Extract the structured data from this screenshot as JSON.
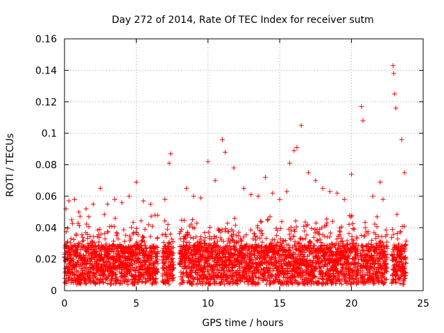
{
  "chart_data": {
    "type": "scatter",
    "title": "Day 272 of 2014, Rate Of TEC Index for receiver sutm",
    "xlabel": "GPS time / hours",
    "ylabel": "ROTI / TECUs",
    "xlim": [
      0,
      25
    ],
    "ylim": [
      0,
      0.16
    ],
    "x_ticks": [
      0,
      5,
      10,
      15,
      20,
      25
    ],
    "x_tick_labels": [
      "0",
      "5",
      "10",
      "15",
      "20",
      "25"
    ],
    "y_ticks": [
      0,
      0.02,
      0.04,
      0.06,
      0.08,
      0.1,
      0.12,
      0.14,
      0.16
    ],
    "y_tick_labels": [
      "0",
      "0.02",
      "0.04",
      "0.06",
      "0.08",
      "0.1",
      "0.12",
      "0.14",
      "0.16"
    ],
    "grid": true,
    "marker": "+",
    "color": "#ff0000",
    "data_gaps_hours": [
      [
        6.5,
        6.8
      ],
      [
        7.6,
        8.0
      ],
      [
        20.5,
        20.6
      ],
      [
        22.5,
        22.8
      ],
      [
        23.8,
        25
      ]
    ],
    "series": [
      {
        "name": "ROTI",
        "x": [
          0.1,
          0.3,
          0.5,
          0.7,
          1.0,
          1.5,
          2.0,
          2.5,
          3.0,
          3.5,
          4.0,
          4.5,
          5.0,
          5.5,
          6.0,
          6.3,
          7.0,
          7.3,
          7.4,
          8.5,
          9.0,
          9.5,
          10.0,
          10.5,
          11.0,
          11.2,
          11.8,
          12.5,
          13.0,
          13.5,
          14.0,
          14.5,
          15.0,
          15.5,
          15.7,
          16.0,
          16.2,
          16.5,
          17.0,
          17.5,
          18.0,
          18.5,
          19.0,
          19.5,
          20.0,
          20.7,
          20.8,
          21.5,
          22.0,
          22.2,
          22.9,
          22.95,
          23.0,
          23.1,
          23.5,
          23.7
        ],
        "y": [
          0.052,
          0.057,
          0.045,
          0.058,
          0.05,
          0.052,
          0.055,
          0.065,
          0.055,
          0.058,
          0.056,
          0.06,
          0.069,
          0.057,
          0.055,
          0.048,
          0.058,
          0.081,
          0.087,
          0.065,
          0.06,
          0.059,
          0.082,
          0.07,
          0.096,
          0.088,
          0.078,
          0.065,
          0.061,
          0.06,
          0.072,
          0.062,
          0.058,
          0.063,
          0.081,
          0.089,
          0.091,
          0.105,
          0.075,
          0.07,
          0.065,
          0.063,
          0.062,
          0.058,
          0.074,
          0.117,
          0.108,
          0.06,
          0.069,
          0.058,
          0.143,
          0.138,
          0.125,
          0.116,
          0.096,
          0.075
        ]
      }
    ]
  }
}
